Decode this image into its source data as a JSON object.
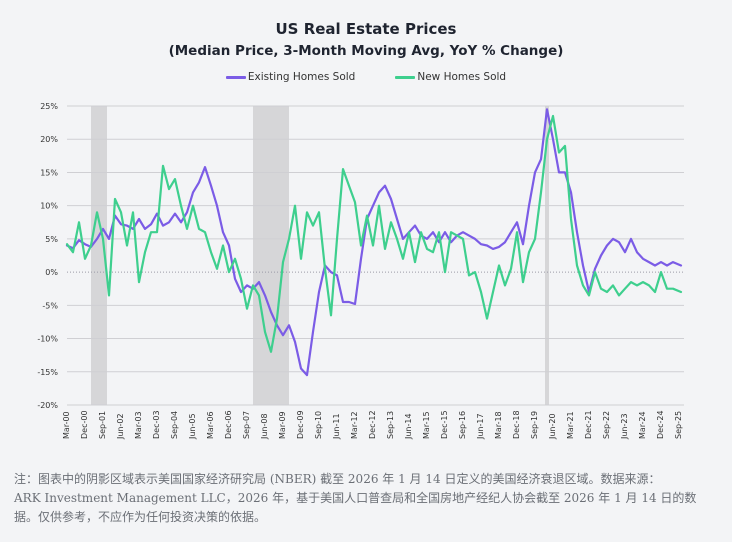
{
  "chart_data": {
    "type": "line",
    "title": "US Real Estate Prices",
    "subtitle": "(Median Price, 3-Month Moving Avg, YoY % Change)",
    "xlabel": "",
    "ylabel": "",
    "ylim": [
      -20,
      25
    ],
    "yticks": [
      25,
      20,
      15,
      10,
      5,
      0,
      -5,
      -10,
      -15,
      -20
    ],
    "ytick_labels": [
      "25%",
      "20%",
      "15%",
      "10%",
      "5%",
      "0%",
      "-5%",
      "-10%",
      "-15%",
      "-20%"
    ],
    "grid": true,
    "legend_position": "top-center",
    "xtick_labels": [
      "Mar-00",
      "Dec-00",
      "Sep-01",
      "Jun-02",
      "Mar-03",
      "Dec-03",
      "Sep-04",
      "Jun-05",
      "Mar-06",
      "Dec-06",
      "Sep-07",
      "Jun-08",
      "Mar-09",
      "Dec-09",
      "Sep-10",
      "Jun-11",
      "Mar-12",
      "Dec-12",
      "Sep-13",
      "Jun-14",
      "Mar-15",
      "Dec-15",
      "Sep-16",
      "Jun-17",
      "Mar-18",
      "Dec-18",
      "Sep-19",
      "Jun-20",
      "Mar-21",
      "Dec-21",
      "Sep-22",
      "Jun-23",
      "Mar-24",
      "Dec-24",
      "Sep-25"
    ],
    "x_start": "2000-03",
    "x_end": "2025-11",
    "recessions": [
      {
        "start": "2001-03",
        "end": "2001-11"
      },
      {
        "start": "2007-12",
        "end": "2009-06"
      },
      {
        "start": "2020-02",
        "end": "2020-04"
      }
    ],
    "series": [
      {
        "name": "Existing Homes Sold",
        "color": "#7b5ce6",
        "months": [
          0,
          3,
          6,
          9,
          12,
          15,
          18,
          21,
          24,
          27,
          30,
          33,
          36,
          39,
          42,
          45,
          48,
          51,
          54,
          57,
          60,
          63,
          66,
          69,
          72,
          75,
          78,
          81,
          84,
          87,
          90,
          93,
          96,
          99,
          102,
          105,
          108,
          111,
          114,
          117,
          120,
          123,
          126,
          129,
          132,
          135,
          138,
          141,
          144,
          147,
          150,
          153,
          156,
          159,
          162,
          165,
          168,
          171,
          174,
          177,
          180,
          183,
          186,
          189,
          192,
          195,
          198,
          201,
          204,
          207,
          210,
          213,
          216,
          219,
          222,
          225,
          228,
          231,
          234,
          237,
          240,
          243,
          246,
          249,
          252,
          255,
          258,
          261,
          264,
          267,
          270,
          273,
          276,
          279,
          282,
          285,
          288,
          291,
          294,
          297,
          300,
          303,
          307
        ],
        "values": [
          4.0,
          3.6,
          4.8,
          4.2,
          3.8,
          5.0,
          6.5,
          5.0,
          8.5,
          7.2,
          7.0,
          6.5,
          8.0,
          6.5,
          7.2,
          8.8,
          7.0,
          7.5,
          8.8,
          7.5,
          9.0,
          12.0,
          13.5,
          15.8,
          13.0,
          10.0,
          6.0,
          4.0,
          -1.0,
          -3.0,
          -2.0,
          -2.5,
          -1.5,
          -3.5,
          -6.0,
          -8.0,
          -9.5,
          -8.0,
          -10.5,
          -14.5,
          -15.5,
          -9.0,
          -3.0,
          1.0,
          0.0,
          -0.5,
          -4.5,
          -4.5,
          -4.8,
          2.0,
          8.0,
          10.0,
          12.0,
          13.0,
          11.0,
          8.0,
          5.0,
          6.0,
          7.0,
          5.5,
          5.0,
          6.0,
          4.5,
          6.0,
          4.5,
          5.5,
          6.0,
          5.5,
          5.0,
          4.2,
          4.0,
          3.5,
          3.8,
          4.5,
          6.0,
          7.5,
          4.2,
          10.0,
          15.0,
          17.0,
          24.5,
          20.0,
          15.0,
          15.0,
          12.0,
          6.0,
          1.0,
          -3.0,
          0.5,
          2.5,
          4.0,
          5.0,
          4.5,
          3.0,
          5.0,
          3.0,
          2.0,
          1.5,
          1.0,
          1.5,
          1.0,
          1.5,
          1.0
        ]
      },
      {
        "name": "New Homes Sold",
        "color": "#3ecf8e",
        "months": [
          0,
          3,
          6,
          9,
          12,
          15,
          18,
          21,
          24,
          27,
          30,
          33,
          36,
          39,
          42,
          45,
          48,
          51,
          54,
          57,
          60,
          63,
          66,
          69,
          72,
          75,
          78,
          81,
          84,
          87,
          90,
          93,
          96,
          99,
          102,
          105,
          108,
          111,
          114,
          117,
          120,
          123,
          126,
          129,
          132,
          135,
          138,
          141,
          144,
          147,
          150,
          153,
          156,
          159,
          162,
          165,
          168,
          171,
          174,
          177,
          180,
          183,
          186,
          189,
          192,
          195,
          198,
          201,
          204,
          207,
          210,
          213,
          216,
          219,
          222,
          225,
          228,
          231,
          234,
          237,
          240,
          243,
          246,
          249,
          252,
          255,
          258,
          261,
          264,
          267,
          270,
          273,
          276,
          279,
          282,
          285,
          288,
          291,
          294,
          297,
          300,
          303,
          307
        ],
        "values": [
          4.2,
          3.0,
          7.5,
          2.0,
          4.0,
          9.0,
          5.0,
          -3.5,
          11.0,
          9.0,
          4.0,
          9.0,
          -1.5,
          3.0,
          6.0,
          6.0,
          16.0,
          12.5,
          14.0,
          10.0,
          6.5,
          10.0,
          6.5,
          6.0,
          3.0,
          0.5,
          4.0,
          0.0,
          2.0,
          -1.0,
          -5.5,
          -2.0,
          -3.5,
          -9.0,
          -12.0,
          -7.0,
          1.5,
          5.0,
          10.0,
          2.0,
          9.0,
          7.0,
          9.0,
          0.5,
          -6.5,
          5.0,
          15.5,
          13.0,
          10.5,
          4.0,
          8.5,
          4.0,
          10.0,
          3.5,
          7.5,
          5.0,
          2.0,
          6.0,
          1.5,
          6.0,
          3.5,
          3.0,
          6.0,
          0.0,
          6.0,
          5.5,
          5.0,
          -0.5,
          0.0,
          -3.0,
          -7.0,
          -3.0,
          1.0,
          -2.0,
          0.5,
          6.0,
          -1.5,
          3.0,
          5.0,
          12.0,
          20.0,
          23.5,
          18.0,
          19.0,
          8.0,
          1.0,
          -2.0,
          -3.5,
          0.0,
          -2.5,
          -3.0,
          -2.0,
          -3.5,
          -2.5,
          -1.5,
          -2.0,
          -1.5,
          -2.0,
          -3.0,
          0.0,
          -2.5,
          -2.5,
          -3.0
        ]
      }
    ]
  },
  "footnote": {
    "line1": "注：图表中的阴影区域表示美国国家经济研究局 (NBER) 截至 2026 年 1 月 14 日定义的美国经济衰退区域。数据来源：",
    "line2": "ARK Investment Management LLC，2026 年，基于美国人口普查局和全国房地产经纪人协会截至 2026 年 1 月 14 日的数",
    "line3": "据。仅供参考，不应作为任何投资决策的依据。"
  }
}
